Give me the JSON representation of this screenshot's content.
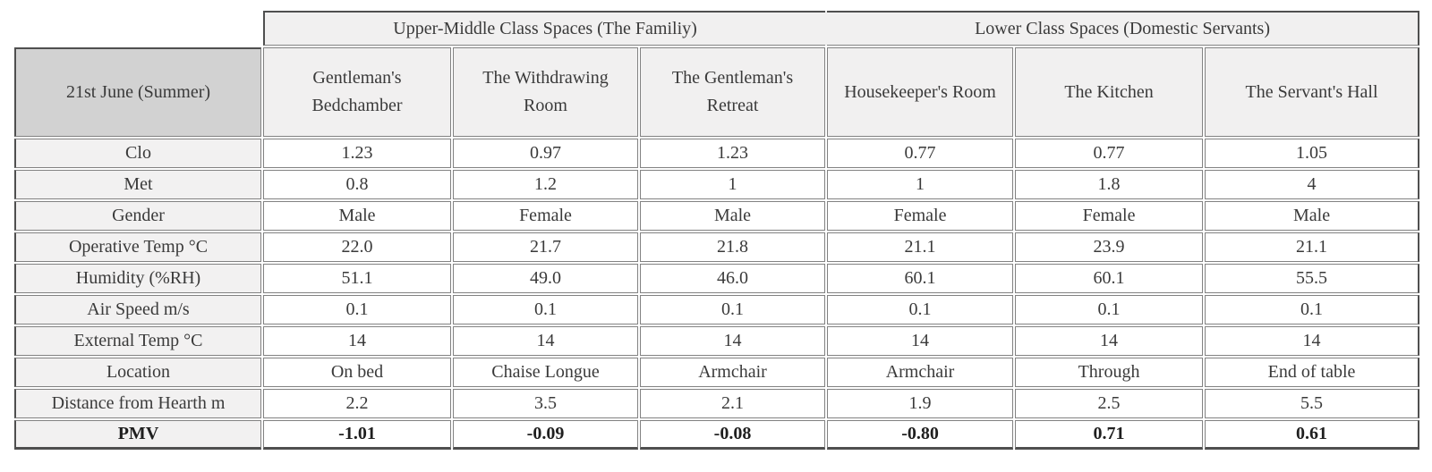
{
  "table": {
    "corner_label": "21st June (Summer)",
    "group_headers": [
      {
        "label": "Upper-Middle Class Spaces (The Familiy)",
        "span": 3
      },
      {
        "label": "Lower Class Spaces (Domestic Servants)",
        "span": 3
      }
    ],
    "column_headers": [
      "Gentleman's Bedchamber",
      "The Withdrawing Room",
      "The Gentleman's Retreat",
      "Housekeeper's Room",
      "The Kitchen",
      "The Servant's Hall"
    ],
    "rows": [
      {
        "label": "Clo",
        "values": [
          "1.23",
          "0.97",
          "1.23",
          "0.77",
          "0.77",
          "1.05"
        ],
        "bold": false
      },
      {
        "label": "Met",
        "values": [
          "0.8",
          "1.2",
          "1",
          "1",
          "1.8",
          "4"
        ],
        "bold": false
      },
      {
        "label": "Gender",
        "values": [
          "Male",
          "Female",
          "Male",
          "Female",
          "Female",
          "Male"
        ],
        "bold": false
      },
      {
        "label": "Operative Temp °C",
        "values": [
          "22.0",
          "21.7",
          "21.8",
          "21.1",
          "23.9",
          "21.1"
        ],
        "bold": false
      },
      {
        "label": "Humidity (%RH)",
        "values": [
          "51.1",
          "49.0",
          "46.0",
          "60.1",
          "60.1",
          "55.5"
        ],
        "bold": false
      },
      {
        "label": "Air Speed m/s",
        "values": [
          "0.1",
          "0.1",
          "0.1",
          "0.1",
          "0.1",
          "0.1"
        ],
        "bold": false
      },
      {
        "label": "External Temp °C",
        "values": [
          "14",
          "14",
          "14",
          "14",
          "14",
          "14"
        ],
        "bold": false
      },
      {
        "label": "Location",
        "values": [
          "On bed",
          "Chaise Longue",
          "Armchair",
          "Armchair",
          "Through",
          "End of table"
        ],
        "bold": false
      },
      {
        "label": "Distance from Hearth m",
        "values": [
          "2.2",
          "3.5",
          "2.1",
          "1.9",
          "2.5",
          "5.5"
        ],
        "bold": false
      },
      {
        "label": "PMV",
        "values": [
          "-1.01",
          "-0.09",
          "-0.08",
          "-0.80",
          "0.71",
          "0.61"
        ],
        "bold": true
      }
    ],
    "colors": {
      "corner_bg": "#d2d2d2",
      "header_bg": "#f1f0f0",
      "row_label_bg": "#f2f1f1",
      "data_cell_bg": "#ffffff",
      "inner_border": "#828282",
      "outer_border": "#4f4f4f",
      "text": "#3a3a3a"
    }
  },
  "chart_data": {
    "type": "table",
    "title": "21st June (Summer)",
    "column_groups": [
      {
        "label": "Upper-Middle Class Spaces (The Familiy)",
        "columns": [
          "Gentleman's Bedchamber",
          "The Withdrawing Room",
          "The Gentleman's Retreat"
        ]
      },
      {
        "label": "Lower Class Spaces (Domestic Servants)",
        "columns": [
          "Housekeeper's Room",
          "The Kitchen",
          "The Servant's Hall"
        ]
      }
    ],
    "categories": [
      "Gentleman's Bedchamber",
      "The Withdrawing Room",
      "The Gentleman's Retreat",
      "Housekeeper's Room",
      "The Kitchen",
      "The Servant's Hall"
    ],
    "series": [
      {
        "name": "Clo",
        "values": [
          1.23,
          0.97,
          1.23,
          0.77,
          0.77,
          1.05
        ]
      },
      {
        "name": "Met",
        "values": [
          0.8,
          1.2,
          1,
          1,
          1.8,
          4
        ]
      },
      {
        "name": "Gender",
        "values": [
          "Male",
          "Female",
          "Male",
          "Female",
          "Female",
          "Male"
        ]
      },
      {
        "name": "Operative Temp °C",
        "values": [
          22.0,
          21.7,
          21.8,
          21.1,
          23.9,
          21.1
        ]
      },
      {
        "name": "Humidity (%RH)",
        "values": [
          51.1,
          49.0,
          46.0,
          60.1,
          60.1,
          55.5
        ]
      },
      {
        "name": "Air Speed m/s",
        "values": [
          0.1,
          0.1,
          0.1,
          0.1,
          0.1,
          0.1
        ]
      },
      {
        "name": "External Temp °C",
        "values": [
          14,
          14,
          14,
          14,
          14,
          14
        ]
      },
      {
        "name": "Location",
        "values": [
          "On bed",
          "Chaise Longue",
          "Armchair",
          "Armchair",
          "Through",
          "End of table"
        ]
      },
      {
        "name": "Distance from Hearth m",
        "values": [
          2.2,
          3.5,
          2.1,
          1.9,
          2.5,
          5.5
        ]
      },
      {
        "name": "PMV",
        "values": [
          -1.01,
          -0.09,
          -0.08,
          -0.8,
          0.71,
          0.61
        ]
      }
    ]
  }
}
